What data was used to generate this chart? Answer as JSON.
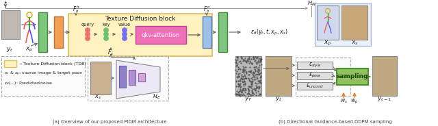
{
  "fig_width": 6.4,
  "fig_height": 1.84,
  "dpi": 100,
  "bg_color": "#ffffff",
  "title_a": "(a) Overview of our proposed PIDM architecture",
  "title_b": "(b) Directional Guidance-based DDPM sampling",
  "tdb_label": "Texture Diffusion block",
  "tdb_color": "#fef3c0",
  "tdb_border": "#e0c060",
  "green_block": "#7dc67d",
  "orange_block": "#f0a050",
  "blue_block": "#a0c0e8",
  "pink_attention": "#f070b8",
  "sampling_green": "#90c060",
  "arrow_color": "#505050",
  "text_color": "#202020"
}
